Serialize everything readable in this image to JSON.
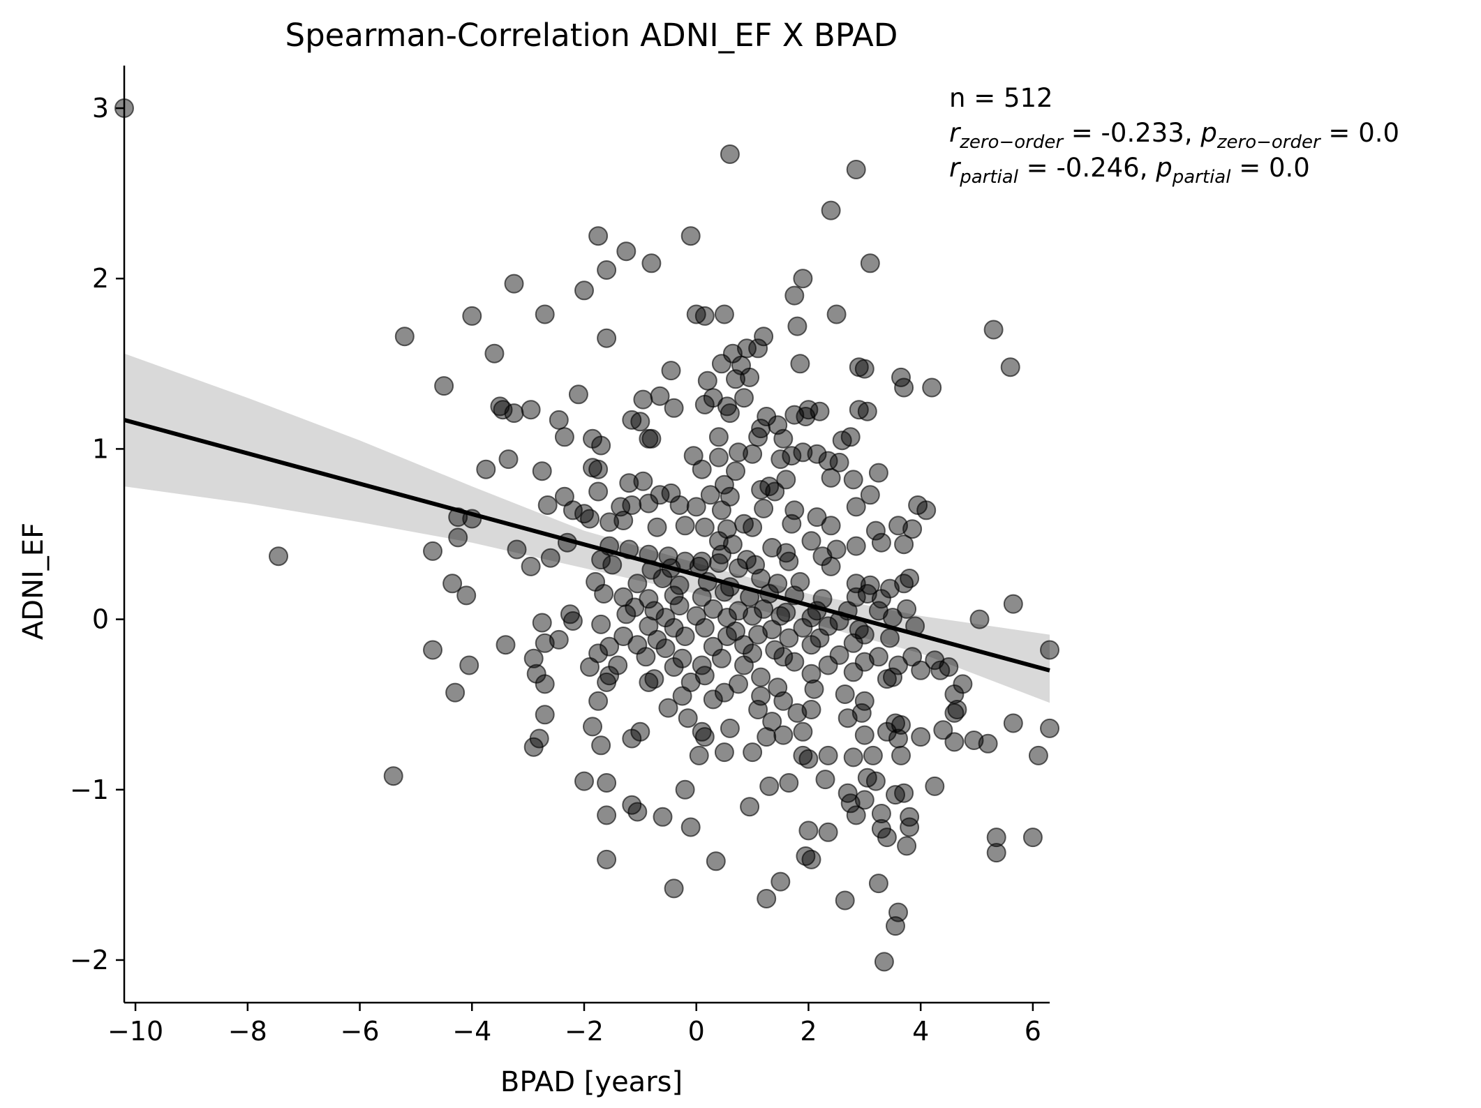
{
  "chart_data": {
    "type": "scatter",
    "title": "Spearman-Correlation ADNI_EF X BPAD",
    "xlabel": "BPAD [years]",
    "ylabel": "ADNI_EF",
    "xlim": [
      -10.2,
      6.3
    ],
    "ylim": [
      -2.25,
      3.25
    ],
    "xticks": [
      -10,
      -8,
      -6,
      -4,
      -2,
      0,
      2,
      4,
      6
    ],
    "xtick_labels": [
      "−10",
      "−8",
      "−6",
      "−4",
      "−2",
      "0",
      "2",
      "4",
      "6"
    ],
    "yticks": [
      -2,
      -1,
      0,
      1,
      2,
      3
    ],
    "ytick_labels": [
      "−2",
      "−1",
      "0",
      "1",
      "2",
      "3"
    ],
    "grid": false,
    "point_color": "#000000",
    "point_opacity": 0.45,
    "regression_line": {
      "x": [
        -10.2,
        6.3
      ],
      "y": [
        1.17,
        -0.3
      ],
      "color": "#000000"
    },
    "confidence_band": {
      "color": "#d9d9d9",
      "x": [
        -10.2,
        -8,
        -6,
        -4,
        -2,
        0,
        2,
        4,
        6.3
      ],
      "lower": [
        0.78,
        0.68,
        0.57,
        0.45,
        0.3,
        0.15,
        -0.02,
        -0.2,
        -0.49
      ],
      "upper": [
        1.56,
        1.3,
        1.05,
        0.78,
        0.52,
        0.33,
        0.15,
        0.02,
        -0.09
      ]
    },
    "annotation": {
      "n": "n = 512",
      "zero_order": {
        "r_label": "r",
        "r_sub": "zero−order",
        "r_value": " = -0.233, ",
        "p_label": "p",
        "p_sub": "zero−order",
        "p_value": " = 0.0"
      },
      "partial": {
        "r_label": "r",
        "r_sub": "partial",
        "r_value": " = -0.246, ",
        "p_label": "p",
        "p_sub": "partial",
        "p_value": " = 0.0"
      }
    },
    "points": [
      [
        -10.2,
        3.0
      ],
      [
        0.6,
        2.73
      ],
      [
        2.85,
        2.64
      ],
      [
        2.4,
        2.4
      ],
      [
        -1.75,
        2.25
      ],
      [
        -0.1,
        2.25
      ],
      [
        -1.25,
        2.16
      ],
      [
        -0.8,
        2.09
      ],
      [
        3.1,
        2.09
      ],
      [
        -1.6,
        2.05
      ],
      [
        1.9,
        2.0
      ],
      [
        -3.25,
        1.97
      ],
      [
        -2.0,
        1.93
      ],
      [
        1.75,
        1.9
      ],
      [
        -4.0,
        1.78
      ],
      [
        -2.7,
        1.79
      ],
      [
        0.0,
        1.79
      ],
      [
        0.15,
        1.78
      ],
      [
        0.5,
        1.79
      ],
      [
        2.5,
        1.79
      ],
      [
        1.8,
        1.72
      ],
      [
        5.3,
        1.7
      ],
      [
        -5.2,
        1.66
      ],
      [
        -1.6,
        1.65
      ],
      [
        1.2,
        1.66
      ],
      [
        -3.6,
        1.56
      ],
      [
        0.9,
        1.59
      ],
      [
        0.65,
        1.56
      ],
      [
        1.1,
        1.59
      ],
      [
        0.45,
        1.5
      ],
      [
        1.85,
        1.5
      ],
      [
        0.8,
        1.49
      ],
      [
        2.9,
        1.48
      ],
      [
        3.0,
        1.47
      ],
      [
        5.6,
        1.48
      ],
      [
        -0.45,
        1.46
      ],
      [
        3.65,
        1.42
      ],
      [
        0.2,
        1.4
      ],
      [
        0.7,
        1.41
      ],
      [
        0.95,
        1.42
      ],
      [
        -4.5,
        1.37
      ],
      [
        3.7,
        1.36
      ],
      [
        4.2,
        1.36
      ],
      [
        -2.1,
        1.32
      ],
      [
        -0.65,
        1.31
      ],
      [
        -0.95,
        1.29
      ],
      [
        0.3,
        1.3
      ],
      [
        0.85,
        1.3
      ],
      [
        -3.5,
        1.25
      ],
      [
        -3.45,
        1.23
      ],
      [
        -3.25,
        1.21
      ],
      [
        -2.95,
        1.23
      ],
      [
        -0.4,
        1.24
      ],
      [
        0.15,
        1.26
      ],
      [
        0.55,
        1.25
      ],
      [
        0.6,
        1.21
      ],
      [
        2.0,
        1.23
      ],
      [
        2.2,
        1.22
      ],
      [
        2.9,
        1.23
      ],
      [
        3.05,
        1.22
      ],
      [
        -2.45,
        1.17
      ],
      [
        -1.15,
        1.17
      ],
      [
        -1.0,
        1.16
      ],
      [
        1.15,
        1.12
      ],
      [
        1.25,
        1.19
      ],
      [
        1.45,
        1.14
      ],
      [
        1.75,
        1.2
      ],
      [
        1.95,
        1.19
      ],
      [
        -2.35,
        1.07
      ],
      [
        -1.85,
        1.06
      ],
      [
        -0.85,
        1.06
      ],
      [
        -0.8,
        1.06
      ],
      [
        0.4,
        1.07
      ],
      [
        1.1,
        1.07
      ],
      [
        1.55,
        1.06
      ],
      [
        2.6,
        1.05
      ],
      [
        2.75,
        1.07
      ],
      [
        -1.7,
        1.02
      ],
      [
        0.75,
        0.98
      ],
      [
        1.0,
        0.97
      ],
      [
        1.9,
        0.98
      ],
      [
        2.15,
        0.97
      ],
      [
        -3.35,
        0.94
      ],
      [
        -0.05,
        0.96
      ],
      [
        0.4,
        0.95
      ],
      [
        1.5,
        0.94
      ],
      [
        1.7,
        0.96
      ],
      [
        2.35,
        0.93
      ],
      [
        2.55,
        0.92
      ],
      [
        -3.75,
        0.88
      ],
      [
        -2.75,
        0.87
      ],
      [
        -1.85,
        0.89
      ],
      [
        -1.75,
        0.88
      ],
      [
        0.1,
        0.88
      ],
      [
        0.7,
        0.87
      ],
      [
        2.4,
        0.83
      ],
      [
        2.8,
        0.82
      ],
      [
        3.25,
        0.86
      ],
      [
        -1.2,
        0.8
      ],
      [
        -0.95,
        0.81
      ],
      [
        0.5,
        0.79
      ],
      [
        1.3,
        0.78
      ],
      [
        1.6,
        0.82
      ],
      [
        -2.35,
        0.72
      ],
      [
        -1.75,
        0.75
      ],
      [
        -0.65,
        0.73
      ],
      [
        -0.45,
        0.74
      ],
      [
        0.25,
        0.73
      ],
      [
        0.6,
        0.72
      ],
      [
        1.15,
        0.76
      ],
      [
        1.4,
        0.75
      ],
      [
        3.1,
        0.73
      ],
      [
        -2.65,
        0.67
      ],
      [
        -2.2,
        0.64
      ],
      [
        -1.35,
        0.66
      ],
      [
        -1.15,
        0.67
      ],
      [
        -0.85,
        0.68
      ],
      [
        -0.3,
        0.67
      ],
      [
        0.0,
        0.66
      ],
      [
        0.45,
        0.64
      ],
      [
        1.2,
        0.65
      ],
      [
        1.75,
        0.64
      ],
      [
        2.85,
        0.66
      ],
      [
        3.95,
        0.67
      ],
      [
        4.1,
        0.64
      ],
      [
        -4.25,
        0.6
      ],
      [
        -4.0,
        0.59
      ],
      [
        -2.0,
        0.62
      ],
      [
        -1.9,
        0.59
      ],
      [
        -1.55,
        0.57
      ],
      [
        -1.3,
        0.58
      ],
      [
        -0.7,
        0.54
      ],
      [
        -0.2,
        0.55
      ],
      [
        0.15,
        0.54
      ],
      [
        0.55,
        0.53
      ],
      [
        0.85,
        0.56
      ],
      [
        1.0,
        0.54
      ],
      [
        1.7,
        0.56
      ],
      [
        2.15,
        0.6
      ],
      [
        2.4,
        0.55
      ],
      [
        3.2,
        0.52
      ],
      [
        3.6,
        0.55
      ],
      [
        3.85,
        0.53
      ],
      [
        -4.25,
        0.48
      ],
      [
        -2.3,
        0.45
      ],
      [
        -1.55,
        0.43
      ],
      [
        -1.2,
        0.41
      ],
      [
        0.4,
        0.46
      ],
      [
        0.65,
        0.44
      ],
      [
        1.35,
        0.42
      ],
      [
        2.05,
        0.46
      ],
      [
        2.5,
        0.41
      ],
      [
        2.85,
        0.43
      ],
      [
        3.3,
        0.45
      ],
      [
        3.7,
        0.44
      ],
      [
        -7.45,
        0.37
      ],
      [
        -4.7,
        0.4
      ],
      [
        -3.2,
        0.41
      ],
      [
        -2.6,
        0.36
      ],
      [
        -1.7,
        0.35
      ],
      [
        -0.85,
        0.38
      ],
      [
        -0.5,
        0.37
      ],
      [
        -0.2,
        0.34
      ],
      [
        0.1,
        0.34
      ],
      [
        0.45,
        0.38
      ],
      [
        0.9,
        0.35
      ],
      [
        1.6,
        0.39
      ],
      [
        2.25,
        0.37
      ],
      [
        -2.95,
        0.31
      ],
      [
        -1.5,
        0.32
      ],
      [
        -0.8,
        0.29
      ],
      [
        -0.45,
        0.3
      ],
      [
        0.05,
        0.31
      ],
      [
        0.4,
        0.33
      ],
      [
        0.75,
        0.3
      ],
      [
        1.05,
        0.32
      ],
      [
        1.65,
        0.34
      ],
      [
        2.4,
        0.31
      ],
      [
        -4.35,
        0.21
      ],
      [
        -1.8,
        0.22
      ],
      [
        -1.05,
        0.21
      ],
      [
        -0.6,
        0.24
      ],
      [
        -0.3,
        0.2
      ],
      [
        0.2,
        0.22
      ],
      [
        0.6,
        0.19
      ],
      [
        1.15,
        0.24
      ],
      [
        1.45,
        0.21
      ],
      [
        1.85,
        0.22
      ],
      [
        2.85,
        0.21
      ],
      [
        3.1,
        0.2
      ],
      [
        3.45,
        0.18
      ],
      [
        3.7,
        0.21
      ],
      [
        3.8,
        0.24
      ],
      [
        -4.1,
        0.14
      ],
      [
        -1.65,
        0.15
      ],
      [
        -1.3,
        0.13
      ],
      [
        -0.85,
        0.12
      ],
      [
        -0.4,
        0.14
      ],
      [
        0.1,
        0.13
      ],
      [
        0.5,
        0.16
      ],
      [
        0.95,
        0.13
      ],
      [
        1.3,
        0.15
      ],
      [
        1.75,
        0.14
      ],
      [
        2.25,
        0.12
      ],
      [
        2.85,
        0.13
      ],
      [
        3.05,
        0.15
      ],
      [
        3.3,
        0.12
      ],
      [
        -1.1,
        0.07
      ],
      [
        -0.75,
        0.05
      ],
      [
        -0.3,
        0.08
      ],
      [
        0.3,
        0.06
      ],
      [
        0.75,
        0.05
      ],
      [
        1.2,
        0.06
      ],
      [
        1.6,
        0.04
      ],
      [
        2.15,
        0.05
      ],
      [
        2.7,
        0.05
      ],
      [
        3.25,
        0.05
      ],
      [
        3.75,
        0.06
      ],
      [
        5.65,
        0.09
      ],
      [
        -2.25,
        0.03
      ],
      [
        -1.25,
        0.03
      ],
      [
        -0.55,
        0.01
      ],
      [
        0.0,
        0.02
      ],
      [
        0.55,
        0.01
      ],
      [
        1.0,
        0.02
      ],
      [
        1.5,
        0.02
      ],
      [
        2.05,
        0.01
      ],
      [
        2.55,
        -0.01
      ],
      [
        3.5,
        0.01
      ],
      [
        5.05,
        0.0
      ],
      [
        -2.75,
        -0.02
      ],
      [
        -2.2,
        -0.01
      ],
      [
        -1.7,
        -0.03
      ],
      [
        -0.85,
        -0.04
      ],
      [
        -0.4,
        -0.05
      ],
      [
        0.15,
        -0.05
      ],
      [
        0.7,
        -0.07
      ],
      [
        1.35,
        -0.06
      ],
      [
        1.9,
        -0.05
      ],
      [
        2.35,
        -0.04
      ],
      [
        2.9,
        -0.06
      ],
      [
        3.9,
        -0.04
      ],
      [
        -1.3,
        -0.1
      ],
      [
        -0.7,
        -0.12
      ],
      [
        -0.2,
        -0.1
      ],
      [
        0.55,
        -0.1
      ],
      [
        1.1,
        -0.09
      ],
      [
        1.65,
        -0.11
      ],
      [
        2.2,
        -0.11
      ],
      [
        3.0,
        -0.09
      ],
      [
        3.45,
        -0.11
      ],
      [
        -2.7,
        -0.14
      ],
      [
        -1.55,
        -0.16
      ],
      [
        -1.05,
        -0.15
      ],
      [
        -0.55,
        -0.17
      ],
      [
        0.3,
        -0.16
      ],
      [
        0.85,
        -0.15
      ],
      [
        1.4,
        -0.18
      ],
      [
        2.05,
        -0.15
      ],
      [
        2.8,
        -0.14
      ],
      [
        6.3,
        -0.18
      ],
      [
        -4.7,
        -0.18
      ],
      [
        -3.4,
        -0.15
      ],
      [
        -2.45,
        -0.12
      ],
      [
        -1.75,
        -0.2
      ],
      [
        -0.9,
        -0.22
      ],
      [
        -0.25,
        -0.23
      ],
      [
        0.45,
        -0.23
      ],
      [
        1.0,
        -0.2
      ],
      [
        1.55,
        -0.22
      ],
      [
        2.55,
        -0.21
      ],
      [
        3.25,
        -0.22
      ],
      [
        3.85,
        -0.22
      ],
      [
        4.25,
        -0.24
      ],
      [
        -4.05,
        -0.27
      ],
      [
        -2.9,
        -0.23
      ],
      [
        -1.9,
        -0.28
      ],
      [
        -1.4,
        -0.27
      ],
      [
        -0.4,
        -0.28
      ],
      [
        0.1,
        -0.27
      ],
      [
        0.85,
        -0.27
      ],
      [
        1.75,
        -0.25
      ],
      [
        2.35,
        -0.27
      ],
      [
        3.0,
        -0.25
      ],
      [
        3.6,
        -0.27
      ],
      [
        4.5,
        -0.28
      ],
      [
        -2.85,
        -0.32
      ],
      [
        -1.55,
        -0.33
      ],
      [
        -0.75,
        -0.35
      ],
      [
        0.15,
        -0.33
      ],
      [
        1.15,
        -0.34
      ],
      [
        2.05,
        -0.32
      ],
      [
        2.8,
        -0.31
      ],
      [
        3.5,
        -0.34
      ],
      [
        4.0,
        -0.3
      ],
      [
        4.35,
        -0.3
      ],
      [
        -2.7,
        -0.38
      ],
      [
        -1.6,
        -0.37
      ],
      [
        -0.85,
        -0.37
      ],
      [
        -0.1,
        -0.37
      ],
      [
        0.75,
        -0.38
      ],
      [
        1.45,
        -0.4
      ],
      [
        2.1,
        -0.41
      ],
      [
        3.4,
        -0.35
      ],
      [
        4.75,
        -0.38
      ],
      [
        -4.3,
        -0.43
      ],
      [
        -0.25,
        -0.45
      ],
      [
        0.5,
        -0.43
      ],
      [
        1.15,
        -0.45
      ],
      [
        2.65,
        -0.44
      ],
      [
        4.6,
        -0.44
      ],
      [
        -1.75,
        -0.48
      ],
      [
        0.3,
        -0.47
      ],
      [
        1.55,
        -0.48
      ],
      [
        2.05,
        -0.53
      ],
      [
        3.0,
        -0.48
      ],
      [
        4.65,
        -0.53
      ],
      [
        -0.5,
        -0.52
      ],
      [
        1.1,
        -0.53
      ],
      [
        1.8,
        -0.55
      ],
      [
        2.95,
        -0.55
      ],
      [
        4.6,
        -0.55
      ],
      [
        -2.7,
        -0.56
      ],
      [
        -0.15,
        -0.58
      ],
      [
        1.35,
        -0.6
      ],
      [
        2.7,
        -0.58
      ],
      [
        3.55,
        -0.61
      ],
      [
        3.65,
        -0.62
      ],
      [
        5.65,
        -0.61
      ],
      [
        -1.85,
        -0.63
      ],
      [
        -1.0,
        -0.66
      ],
      [
        0.1,
        -0.66
      ],
      [
        0.6,
        -0.64
      ],
      [
        1.55,
        -0.68
      ],
      [
        3.4,
        -0.66
      ],
      [
        4.4,
        -0.65
      ],
      [
        6.3,
        -0.64
      ],
      [
        -2.8,
        -0.7
      ],
      [
        -1.15,
        -0.7
      ],
      [
        0.15,
        -0.69
      ],
      [
        1.25,
        -0.69
      ],
      [
        1.9,
        -0.66
      ],
      [
        3.0,
        -0.68
      ],
      [
        3.6,
        -0.7
      ],
      [
        4.0,
        -0.69
      ],
      [
        4.6,
        -0.72
      ],
      [
        4.95,
        -0.71
      ],
      [
        5.2,
        -0.73
      ],
      [
        -2.9,
        -0.75
      ],
      [
        -1.7,
        -0.74
      ],
      [
        0.05,
        -0.8
      ],
      [
        0.5,
        -0.78
      ],
      [
        1.0,
        -0.78
      ],
      [
        1.9,
        -0.8
      ],
      [
        2.35,
        -0.8
      ],
      [
        2.8,
        -0.81
      ],
      [
        3.15,
        -0.8
      ],
      [
        3.65,
        -0.8
      ],
      [
        6.1,
        -0.8
      ],
      [
        2.0,
        -0.82
      ],
      [
        -5.4,
        -0.92
      ],
      [
        -2.0,
        -0.95
      ],
      [
        -1.6,
        -0.96
      ],
      [
        1.65,
        -0.96
      ],
      [
        2.3,
        -0.94
      ],
      [
        3.05,
        -0.93
      ],
      [
        3.2,
        -0.95
      ],
      [
        -0.2,
        -1.0
      ],
      [
        1.3,
        -0.98
      ],
      [
        2.7,
        -1.02
      ],
      [
        3.55,
        -1.03
      ],
      [
        3.7,
        -1.02
      ],
      [
        4.25,
        -0.98
      ],
      [
        -1.15,
        -1.09
      ],
      [
        2.75,
        -1.08
      ],
      [
        3.0,
        -1.06
      ],
      [
        -1.05,
        -1.13
      ],
      [
        -1.6,
        -1.15
      ],
      [
        -0.6,
        -1.16
      ],
      [
        0.95,
        -1.1
      ],
      [
        2.85,
        -1.15
      ],
      [
        3.3,
        -1.14
      ],
      [
        3.8,
        -1.16
      ],
      [
        -0.1,
        -1.22
      ],
      [
        2.0,
        -1.24
      ],
      [
        2.35,
        -1.25
      ],
      [
        3.3,
        -1.23
      ],
      [
        3.8,
        -1.22
      ],
      [
        3.4,
        -1.28
      ],
      [
        5.35,
        -1.28
      ],
      [
        6.0,
        -1.28
      ],
      [
        3.75,
        -1.33
      ],
      [
        -1.6,
        -1.41
      ],
      [
        0.35,
        -1.42
      ],
      [
        1.95,
        -1.39
      ],
      [
        2.05,
        -1.41
      ],
      [
        5.35,
        -1.37
      ],
      [
        -0.4,
        -1.58
      ],
      [
        1.5,
        -1.54
      ],
      [
        3.25,
        -1.55
      ],
      [
        1.25,
        -1.64
      ],
      [
        2.65,
        -1.65
      ],
      [
        3.6,
        -1.72
      ],
      [
        3.55,
        -1.8
      ],
      [
        3.35,
        -2.01
      ]
    ]
  }
}
